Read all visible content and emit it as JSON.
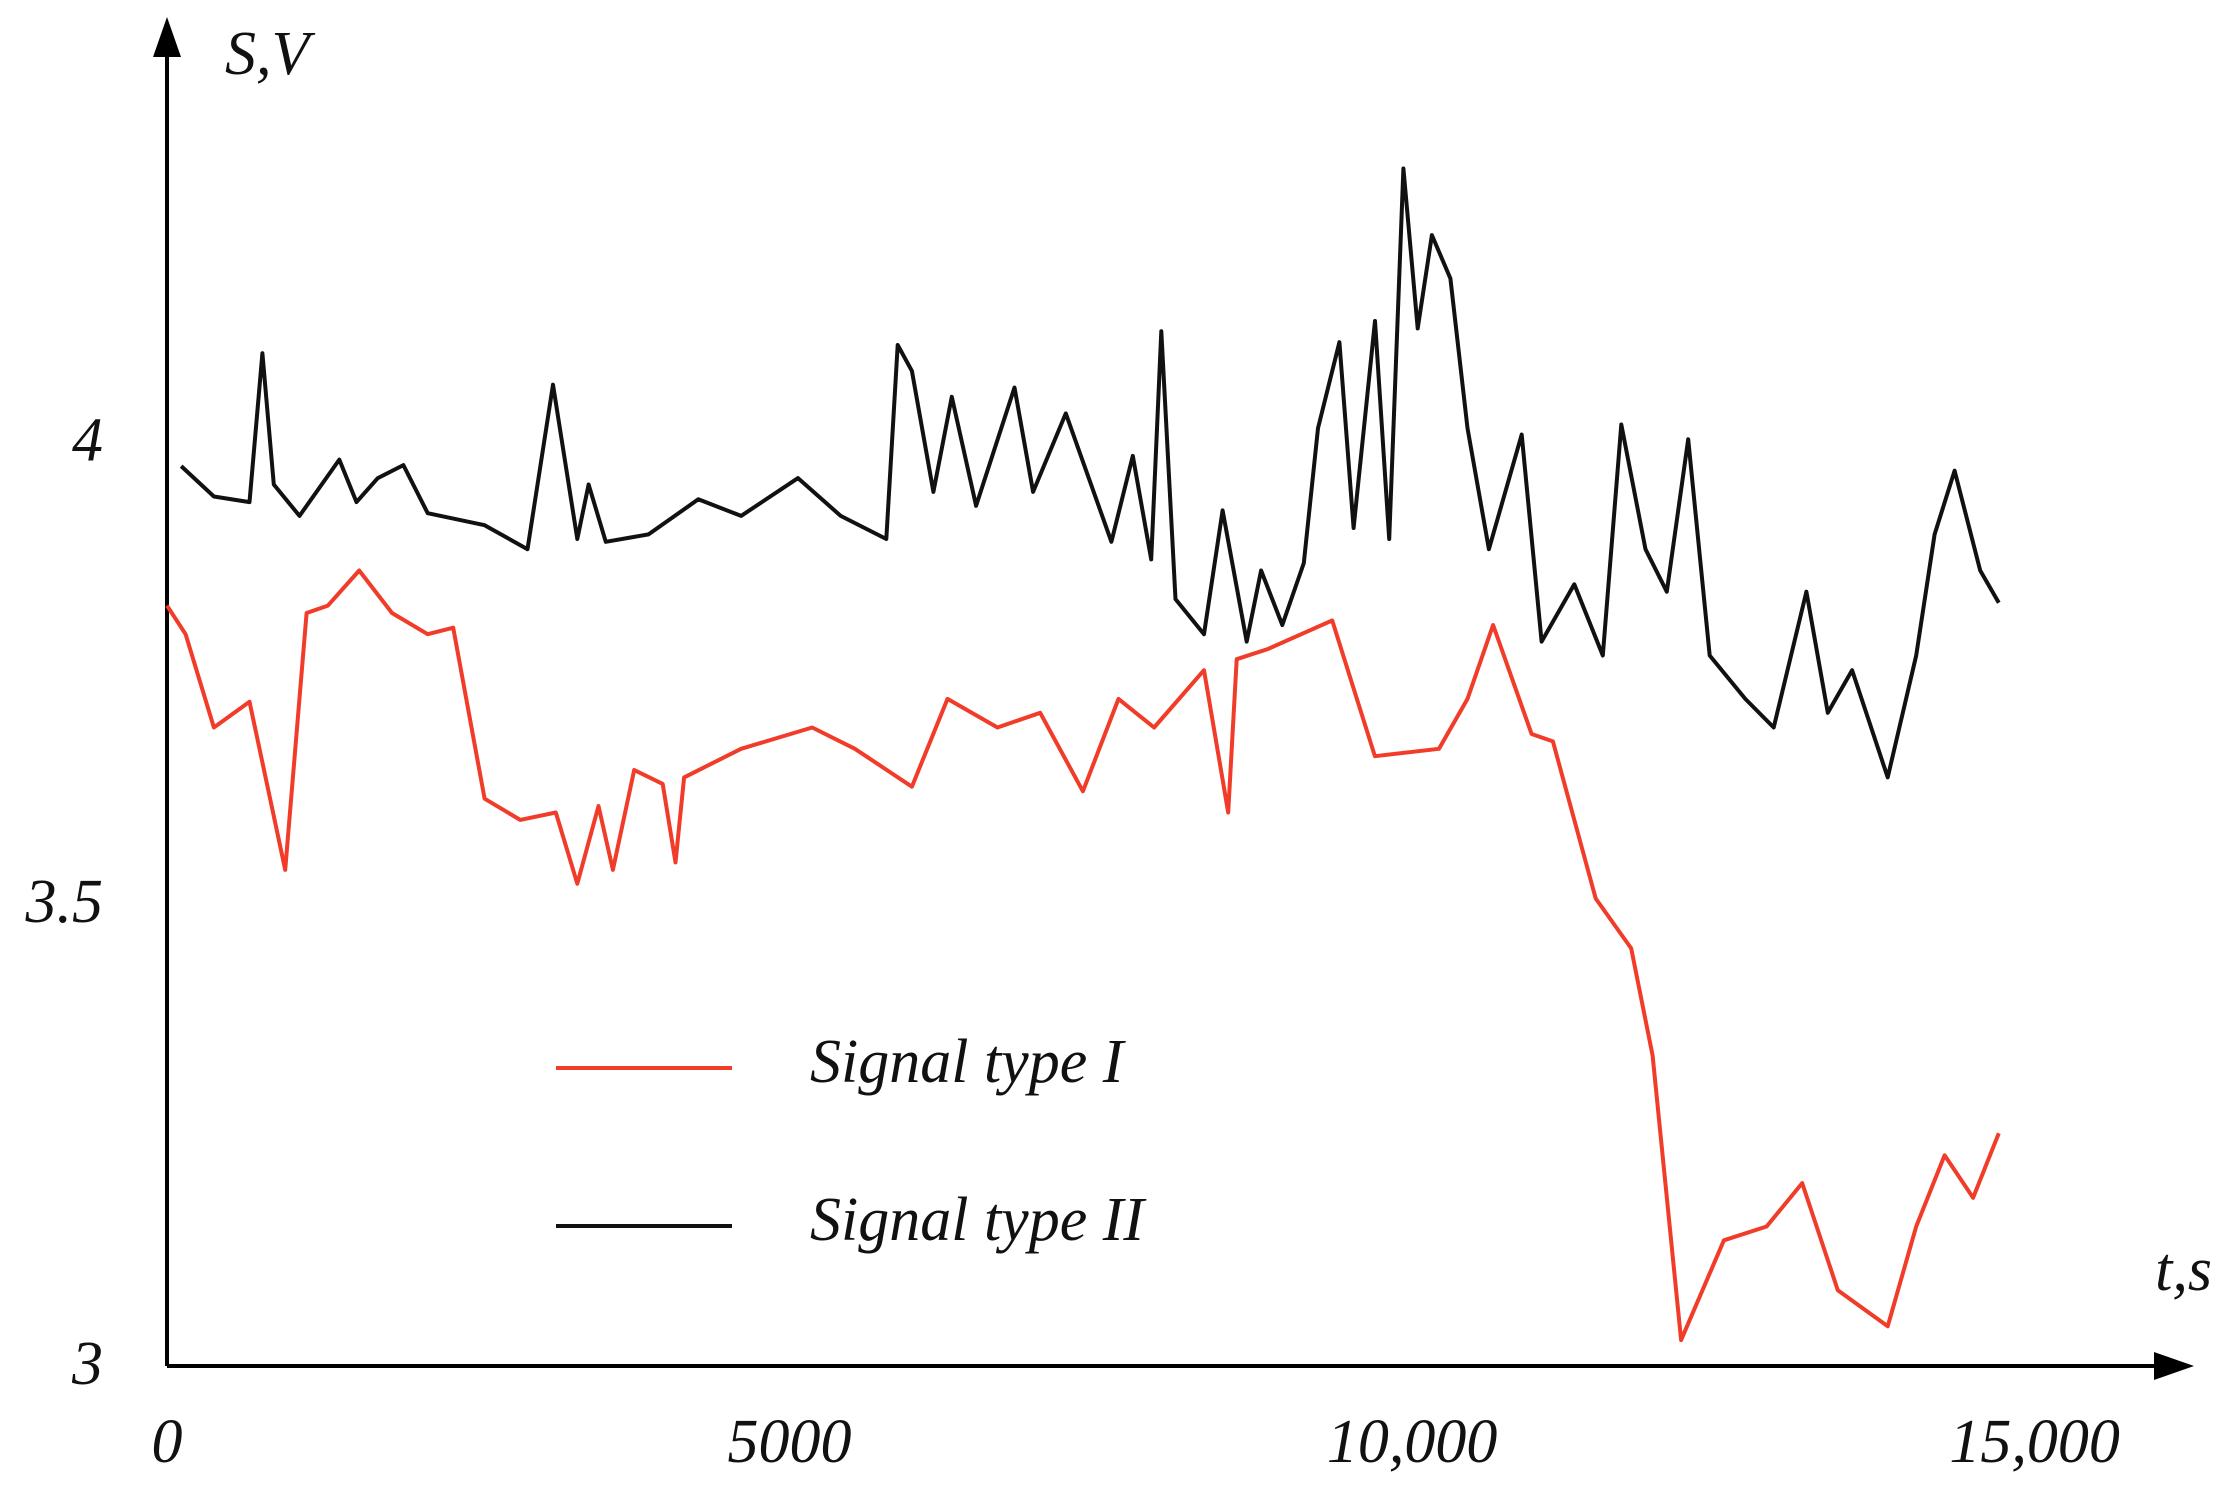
{
  "chart_data": {
    "type": "line",
    "x_label": "t,s",
    "y_label": "S,V",
    "xlim": [
      0,
      16280
    ],
    "ylim": [
      3,
      4.46
    ],
    "xticks": [
      0,
      5000,
      {
        "value": 10000,
        "label": "10,000"
      },
      {
        "value": 15000,
        "label": "15,000"
      }
    ],
    "yticks": [
      3,
      3.5,
      4
    ],
    "grid": false,
    "legend": "lower left",
    "series": [
      {
        "name": "Signal type I",
        "color": "#f03c28",
        "x": [
          0,
          149,
          377,
          663,
          949,
          1121,
          1292,
          1544,
          1807,
          2094,
          2299,
          2551,
          2837,
          3123,
          3295,
          3466,
          3581,
          3752,
          3981,
          4084,
          4153,
          4611,
          5182,
          5525,
          5983,
          6269,
          6670,
          7013,
          7356,
          7642,
          7928,
          8329,
          8523,
          8591,
          8843,
          9358,
          9701,
          10216,
          10445,
          10651,
          10960,
          11131,
          11475,
          11760,
          11932,
          12161,
          12504,
          12847,
          13133,
          13419,
          13820,
          14049,
          14277,
          14506,
          14712
        ],
        "values": [
          3.823,
          3.792,
          3.691,
          3.719,
          3.537,
          3.815,
          3.823,
          3.861,
          3.815,
          3.792,
          3.799,
          3.614,
          3.591,
          3.599,
          3.522,
          3.606,
          3.537,
          3.645,
          3.63,
          3.545,
          3.637,
          3.668,
          3.691,
          3.668,
          3.627,
          3.722,
          3.691,
          3.707,
          3.622,
          3.722,
          3.691,
          3.753,
          3.599,
          3.765,
          3.776,
          3.807,
          3.66,
          3.668,
          3.722,
          3.802,
          3.684,
          3.676,
          3.506,
          3.452,
          3.336,
          3.028,
          3.136,
          3.151,
          3.198,
          3.082,
          3.043,
          3.151,
          3.228,
          3.182,
          3.252
        ]
      },
      {
        "name": "Signal type II",
        "color": "#111111",
        "x": [
          114,
          377,
          663,
          766,
          858,
          1064,
          1384,
          1522,
          1693,
          1899,
          2094,
          2551,
          2895,
          3100,
          3295,
          3386,
          3524,
          3867,
          4267,
          4611,
          5068,
          5411,
          5777,
          5869,
          5983,
          6155,
          6303,
          6498,
          6807,
          6956,
          7219,
          7585,
          7757,
          7905,
          7986,
          8100,
          8329,
          8478,
          8672,
          8787,
          8958,
          9130,
          9244,
          9416,
          9530,
          9702,
          9816,
          9930,
          10045,
          10159,
          10308,
          10445,
          10617,
          10880,
          11040,
          11303,
          11532,
          11680,
          11875,
          12046,
          12218,
          12390,
          12676,
          12904,
          13167,
          13339,
          13534,
          13820,
          14049,
          14197,
          14357,
          14563,
          14712
        ],
        "values": [
          3.974,
          3.941,
          3.935,
          4.096,
          3.954,
          3.92,
          3.981,
          3.935,
          3.961,
          3.975,
          3.923,
          3.91,
          3.884,
          4.062,
          3.895,
          3.954,
          3.892,
          3.9,
          3.938,
          3.92,
          3.961,
          3.92,
          3.895,
          4.105,
          4.077,
          3.946,
          4.049,
          3.931,
          4.059,
          3.946,
          4.031,
          3.892,
          3.985,
          3.873,
          4.12,
          3.83,
          3.792,
          3.926,
          3.784,
          3.861,
          3.802,
          3.869,
          4.015,
          4.108,
          3.907,
          4.131,
          3.895,
          4.296,
          4.123,
          4.224,
          4.177,
          4.015,
          3.884,
          4.008,
          3.784,
          3.846,
          3.769,
          4.019,
          3.884,
          3.838,
          4.003,
          3.769,
          3.722,
          3.691,
          3.838,
          3.707,
          3.753,
          3.637,
          3.769,
          3.9,
          3.969,
          3.861,
          3.826
        ]
      }
    ]
  }
}
